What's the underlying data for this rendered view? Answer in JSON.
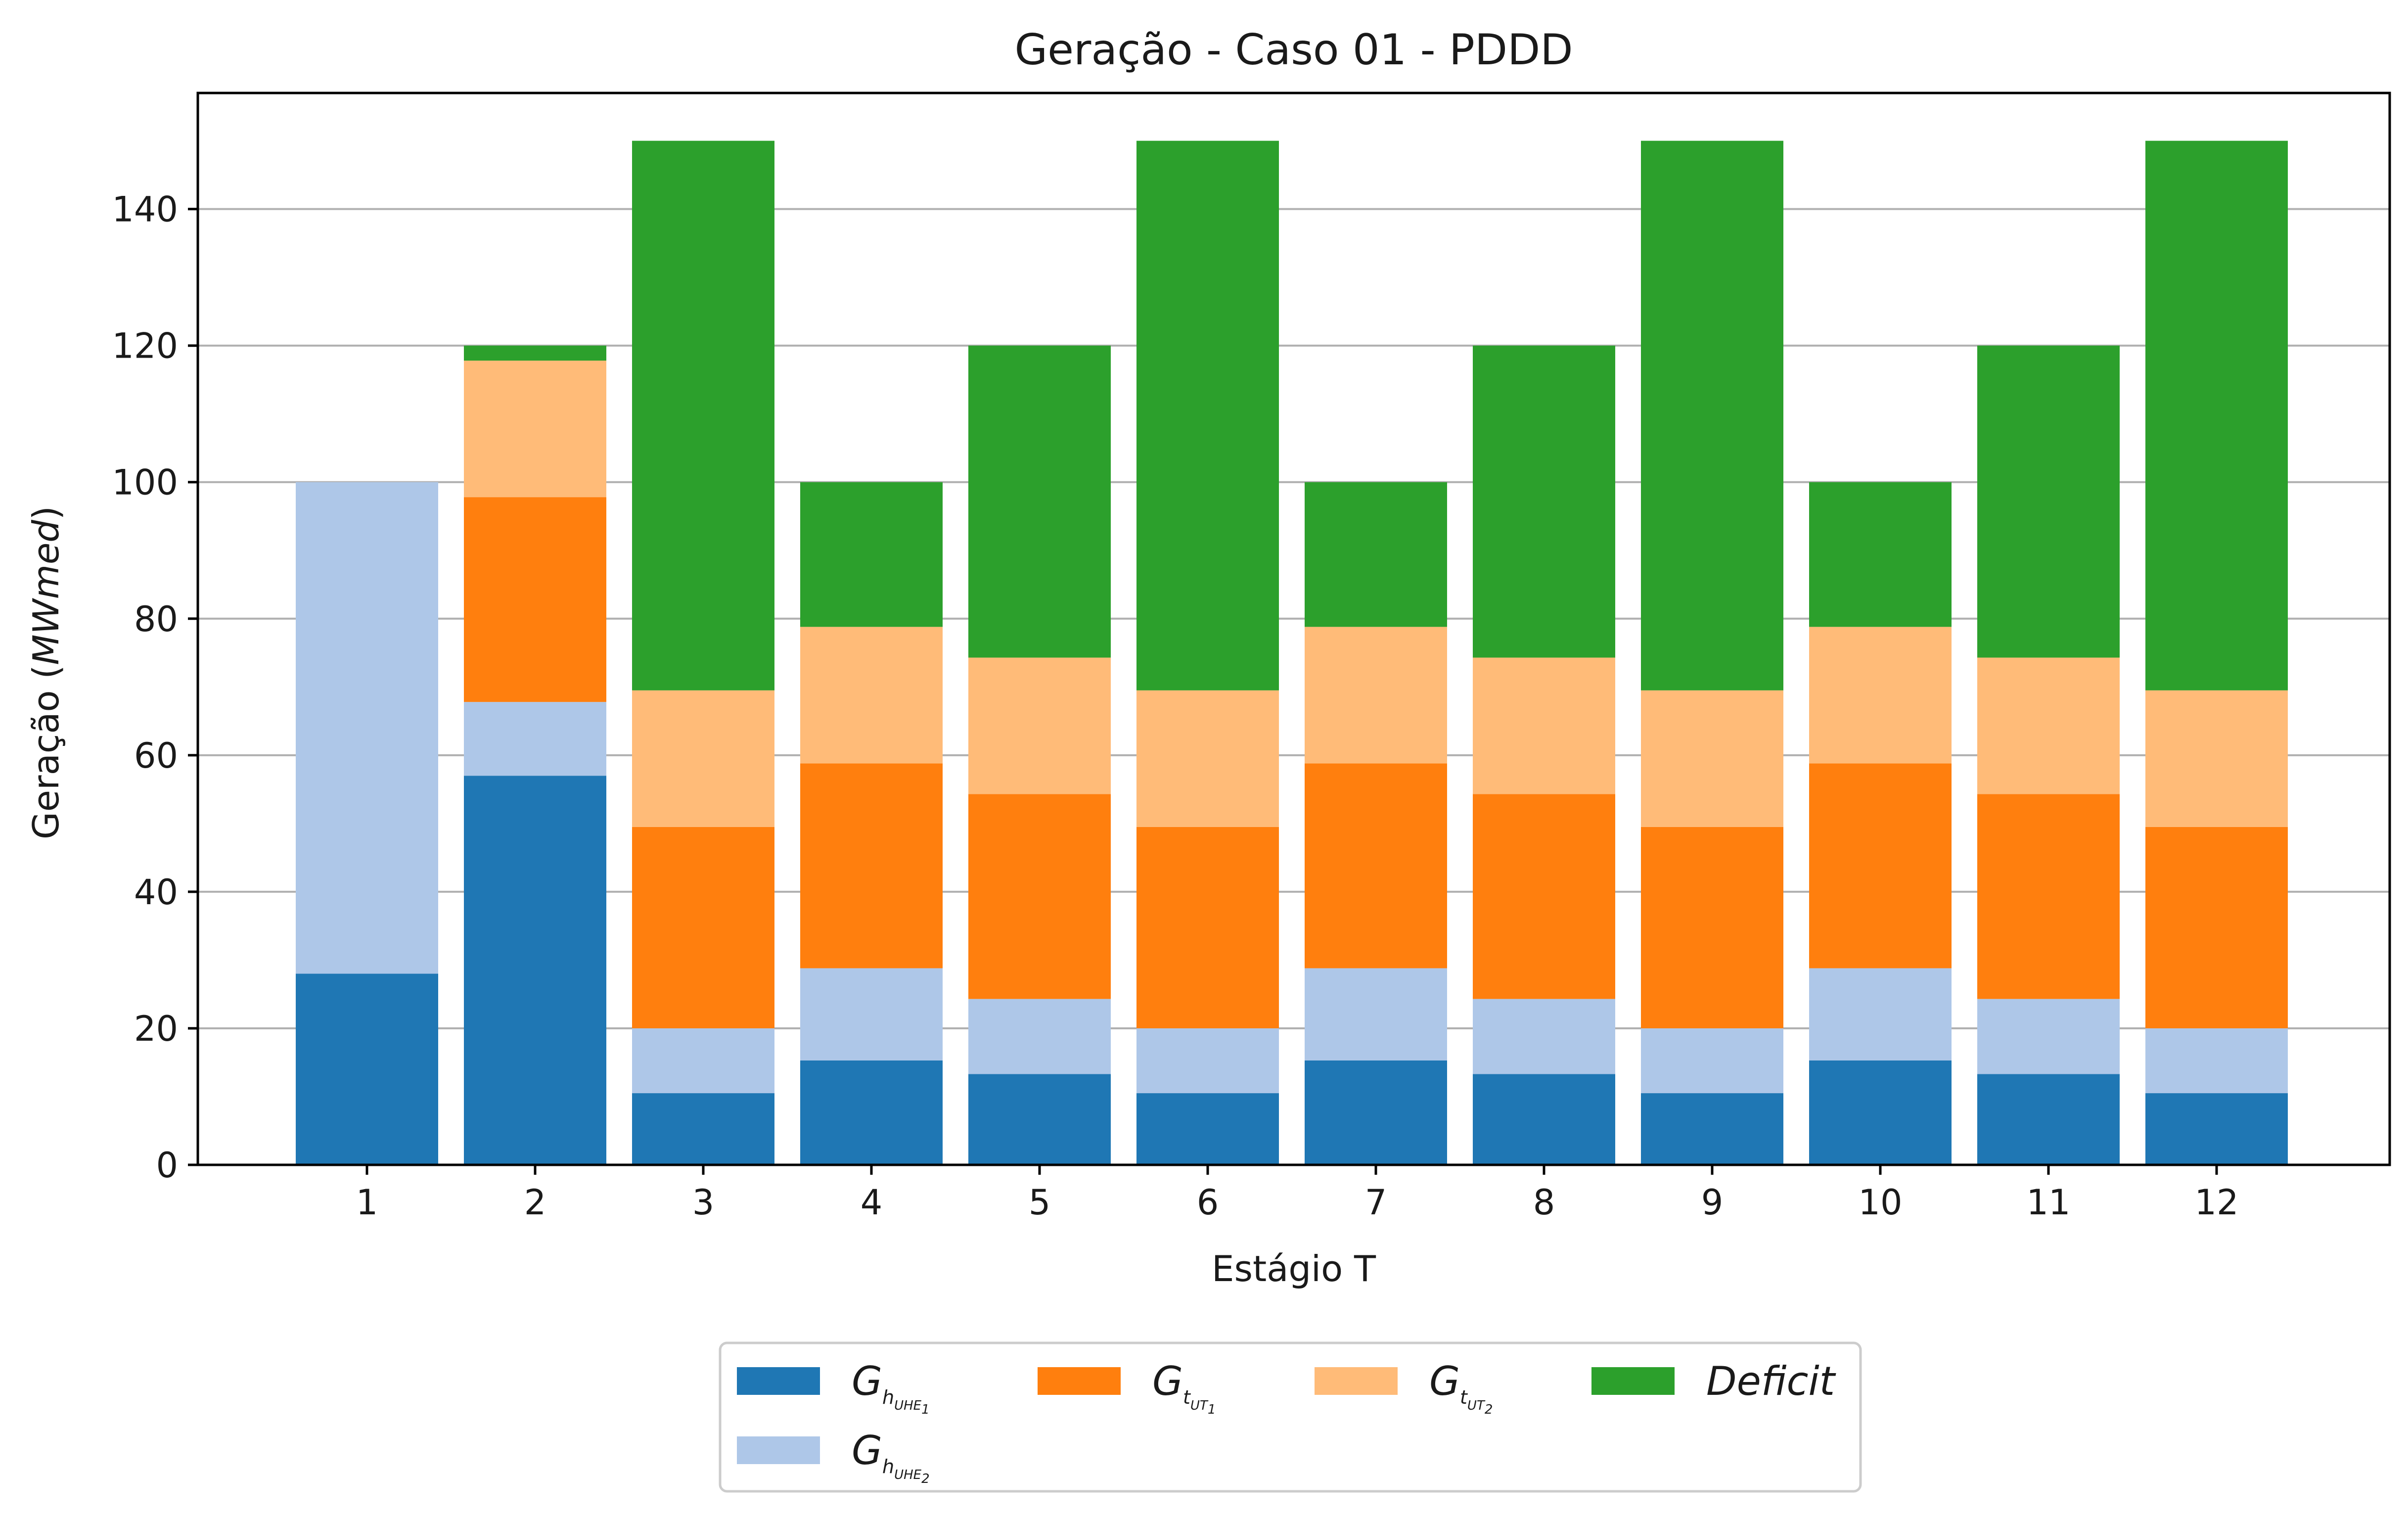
{
  "chart_data": {
    "type": "bar",
    "stacked": true,
    "title": "Geração - Caso 01 - PDDD",
    "xlabel": "Estágio T",
    "ylabel": {
      "prefix": "Geração (",
      "unit": "MWmed",
      "suffix": ")"
    },
    "ylim": [
      0,
      157
    ],
    "yticks": [
      0,
      20,
      40,
      60,
      80,
      100,
      120,
      140
    ],
    "grid": "y",
    "legend_placement": "bottom-center, below plot",
    "categories": [
      "1",
      "2",
      "3",
      "4",
      "5",
      "6",
      "7",
      "8",
      "9",
      "10",
      "11",
      "12"
    ],
    "series": [
      {
        "key": "uhe1",
        "legend": {
          "main": "G",
          "sub": "h",
          "subsub": "UHE",
          "index": "1"
        },
        "color": "#1f77b4",
        "values": [
          28,
          57,
          10.5,
          15.3,
          13.3,
          10.5,
          15.3,
          13.3,
          10.5,
          15.3,
          13.3,
          10.5
        ]
      },
      {
        "key": "uhe2",
        "legend": {
          "main": "G",
          "sub": "h",
          "subsub": "UHE",
          "index": "2"
        },
        "color": "#aec7e8",
        "values": [
          72,
          10.8,
          9.5,
          13.5,
          11,
          9.5,
          13.5,
          11,
          9.5,
          13.5,
          11,
          9.5
        ]
      },
      {
        "key": "ut1",
        "legend": {
          "main": "G",
          "sub": "t",
          "subsub": "UT",
          "index": "1"
        },
        "color": "#ff7f0e",
        "values": [
          0,
          30,
          29.5,
          30,
          30,
          29.5,
          30,
          30,
          29.5,
          30,
          30,
          29.5
        ]
      },
      {
        "key": "ut2",
        "legend": {
          "main": "G",
          "sub": "t",
          "subsub": "UT",
          "index": "2"
        },
        "color": "#ffbb78",
        "values": [
          0,
          20,
          20,
          20,
          20,
          20,
          20,
          20,
          20,
          20,
          20,
          20
        ]
      },
      {
        "key": "deficit",
        "legend": {
          "main": "Deficit",
          "sub": "",
          "subsub": "",
          "index": ""
        },
        "color": "#2ca02c",
        "values": [
          0,
          2.2,
          80.5,
          21.2,
          45.7,
          80.5,
          21.2,
          45.7,
          80.5,
          21.2,
          45.7,
          80.5
        ]
      }
    ]
  }
}
